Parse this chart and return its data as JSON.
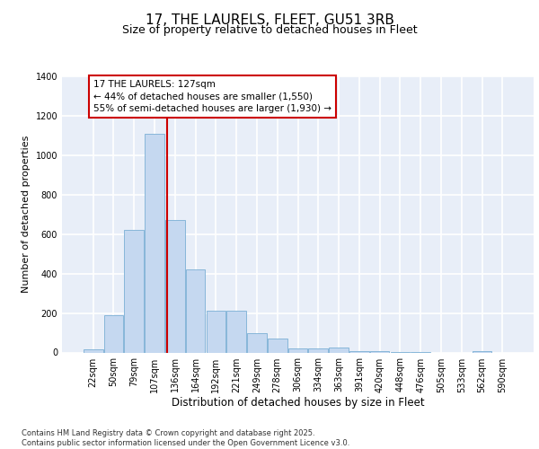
{
  "title": "17, THE LAURELS, FLEET, GU51 3RB",
  "subtitle": "Size of property relative to detached houses in Fleet",
  "xlabel": "Distribution of detached houses by size in Fleet",
  "ylabel": "Number of detached properties",
  "categories": [
    "22sqm",
    "50sqm",
    "79sqm",
    "107sqm",
    "136sqm",
    "164sqm",
    "192sqm",
    "221sqm",
    "249sqm",
    "278sqm",
    "306sqm",
    "334sqm",
    "363sqm",
    "391sqm",
    "420sqm",
    "448sqm",
    "476sqm",
    "505sqm",
    "533sqm",
    "562sqm",
    "590sqm"
  ],
  "values": [
    15,
    190,
    620,
    1110,
    670,
    420,
    210,
    210,
    100,
    70,
    20,
    20,
    25,
    8,
    5,
    2,
    2,
    0,
    0,
    5,
    0
  ],
  "bar_color": "#c5d8f0",
  "bar_edge_color": "#7aafd4",
  "red_line_index": 3.63,
  "red_line_color": "#cc0000",
  "annotation_text": "17 THE LAURELS: 127sqm\n← 44% of detached houses are smaller (1,550)\n55% of semi-detached houses are larger (1,930) →",
  "annotation_box_color": "#ffffff",
  "annotation_box_edge": "#cc0000",
  "ylim": [
    0,
    1400
  ],
  "background_color": "#e8eef8",
  "grid_color": "#ffffff",
  "footer": "Contains HM Land Registry data © Crown copyright and database right 2025.\nContains public sector information licensed under the Open Government Licence v3.0.",
  "title_fontsize": 11,
  "subtitle_fontsize": 9,
  "ylabel_fontsize": 8,
  "xlabel_fontsize": 8.5,
  "tick_fontsize": 7,
  "annotation_fontsize": 7.5,
  "footer_fontsize": 6
}
